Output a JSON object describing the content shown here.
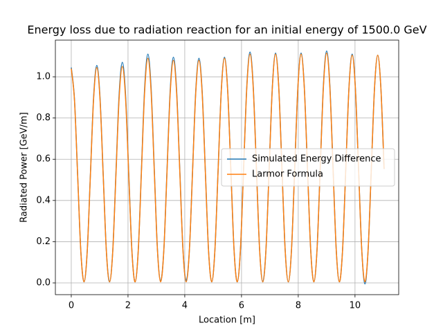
{
  "chart_data": {
    "type": "line",
    "title": "Energy loss due to radiation reaction for an initial energy of 1500.0 GeV",
    "xlabel": "Location [m]",
    "ylabel": "Radiated Power [GeV/m]",
    "x": [
      0,
      0.1125,
      0.225,
      0.3375,
      0.45,
      0.5625,
      0.675,
      0.7875,
      0.9,
      1.0125,
      1.125,
      1.2375,
      1.35,
      1.4625,
      1.575,
      1.6875,
      1.8,
      1.9125,
      2.025,
      2.1375,
      2.25,
      2.3625,
      2.475,
      2.5875,
      2.7,
      2.8125,
      2.925,
      3.0375,
      3.15,
      3.2625,
      3.375,
      3.4875,
      3.6,
      3.7125,
      3.825,
      3.9375,
      4.05,
      4.1625,
      4.275,
      4.3875,
      4.5,
      4.6125,
      4.725,
      4.8375,
      4.95,
      5.0625,
      5.175,
      5.2875,
      5.4,
      5.5125,
      5.625,
      5.7375,
      5.85,
      5.9625,
      6.075,
      6.1875,
      6.3,
      6.4125,
      6.525,
      6.6375,
      6.75,
      6.8625,
      6.975,
      7.0875,
      7.2,
      7.3125,
      7.425,
      7.5375,
      7.65,
      7.7625,
      7.875,
      7.9875,
      8.1,
      8.2125,
      8.325,
      8.4375,
      8.55,
      8.6625,
      8.775,
      8.8875,
      9,
      9.1125,
      9.225,
      9.3375,
      9.45,
      9.5625,
      9.675,
      9.7875,
      9.9,
      10.0125,
      10.125,
      10.2375,
      10.35,
      10.4625,
      10.575,
      10.6875,
      10.8,
      10.9125,
      11.025
    ],
    "series": [
      {
        "name": "Simulated Energy Difference",
        "color": "#1f77b4",
        "values": [
          1.045,
          0.892,
          0.523,
          0.153,
          0.005,
          0.154,
          0.528,
          0.901,
          1.055,
          0.901,
          0.528,
          0.154,
          0.005,
          0.156,
          0.535,
          0.914,
          1.07,
          0.914,
          0.535,
          0.156,
          0.005,
          0.162,
          0.555,
          0.948,
          1.11,
          0.948,
          0.555,
          0.162,
          0.01,
          0.16,
          0.548,
          0.935,
          1.095,
          0.935,
          0.548,
          0.16,
          0.01,
          0.159,
          0.545,
          0.931,
          1.09,
          0.931,
          0.545,
          0.159,
          0.005,
          0.16,
          0.548,
          0.935,
          1.095,
          0.935,
          0.548,
          0.16,
          0.005,
          0.164,
          0.56,
          0.956,
          1.12,
          0.956,
          0.56,
          0.164,
          0.005,
          0.163,
          0.558,
          0.952,
          1.115,
          0.952,
          0.558,
          0.163,
          0.005,
          0.163,
          0.558,
          0.952,
          1.115,
          0.952,
          0.558,
          0.163,
          0.005,
          0.164,
          0.563,
          0.961,
          1.125,
          0.961,
          0.563,
          0.164,
          0.005,
          0.162,
          0.555,
          0.948,
          1.11,
          0.948,
          0.555,
          0.162,
          -0.005,
          0.161,
          0.553,
          0.944,
          1.105,
          0.944,
          0.553
        ]
      },
      {
        "name": "Larmor Formula",
        "color": "#ff7f0e",
        "values": [
          1.04,
          0.888,
          0.52,
          0.152,
          0.005,
          0.153,
          0.523,
          0.892,
          1.045,
          0.892,
          0.523,
          0.153,
          0.005,
          0.153,
          0.525,
          0.897,
          1.05,
          0.897,
          0.525,
          0.153,
          0.005,
          0.159,
          0.545,
          0.931,
          1.09,
          0.931,
          0.545,
          0.159,
          0.005,
          0.158,
          0.54,
          0.922,
          1.08,
          0.922,
          0.54,
          0.158,
          0.005,
          0.158,
          0.54,
          0.922,
          1.08,
          0.922,
          0.54,
          0.158,
          0.005,
          0.159,
          0.545,
          0.931,
          1.09,
          0.931,
          0.545,
          0.159,
          0.005,
          0.162,
          0.555,
          0.948,
          1.11,
          0.948,
          0.555,
          0.162,
          0.005,
          0.162,
          0.555,
          0.948,
          1.11,
          0.948,
          0.555,
          0.162,
          0.005,
          0.162,
          0.555,
          0.948,
          1.11,
          0.948,
          0.555,
          0.162,
          0.005,
          0.163,
          0.558,
          0.952,
          1.115,
          0.952,
          0.558,
          0.163,
          0.005,
          0.161,
          0.553,
          0.944,
          1.105,
          0.944,
          0.553,
          0.161,
          0.005,
          0.161,
          0.553,
          0.944,
          1.105,
          0.944,
          0.553
        ]
      }
    ],
    "xlim": [
      -0.56,
      11.54
    ],
    "ylim": [
      -0.057,
      1.178
    ],
    "xticks": [
      0,
      2,
      4,
      6,
      8,
      10
    ],
    "yticks": [
      {
        "value": 0,
        "label": "0.0"
      },
      0.2,
      0.4,
      0.6,
      0.8,
      {
        "value": 1,
        "label": "1.0"
      }
    ],
    "grid": true,
    "legend": "center right"
  }
}
